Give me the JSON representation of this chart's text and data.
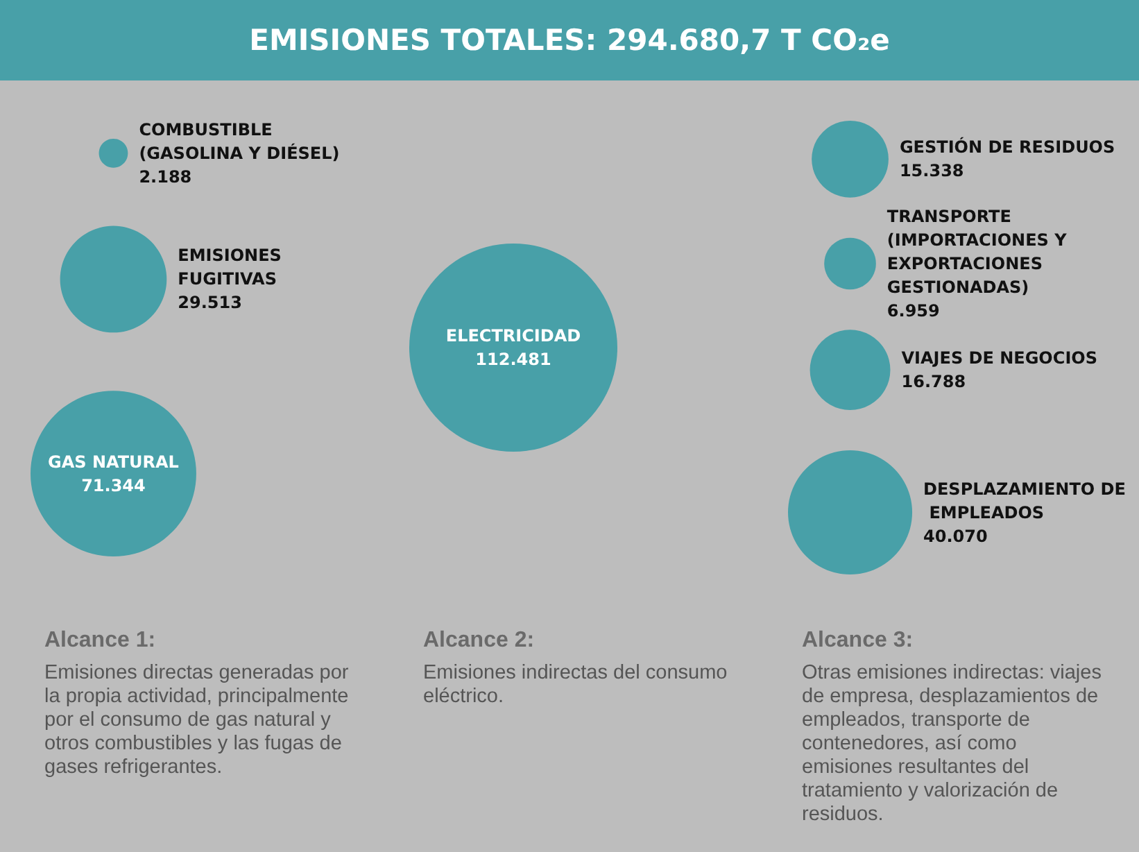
{
  "chart_data": [
    {
      "type": "other",
      "title": "EMISIONES TOTALES: 294.680,7 T CO₂e"
    },
    {
      "type": "other",
      "title": "Alcance 1:",
      "subtitle": "Emisiones directas generadas por la propia actividad, principalmente por el consumo de gas natural y otros combustibles y las fugas de gases refrigerantes.",
      "color": "#48a0a8",
      "categories": [
        "COMBUSTIBLE (GASOLINA Y DIÉSEL)",
        "EMISIONES FUGITIVAS",
        "GAS NATURAL"
      ],
      "values": [
        2188,
        29513,
        71344
      ],
      "value_labels": [
        "2.188",
        "29.513",
        "71.344"
      ]
    },
    {
      "type": "other",
      "title": "Alcance 2:",
      "subtitle": "Emisiones indirectas del consumo eléctrico.",
      "color": "#48a0a8",
      "categories": [
        "ELECTRICIDAD"
      ],
      "values": [
        112481
      ],
      "value_labels": [
        "112.481"
      ]
    },
    {
      "type": "other",
      "title": "Alcance 3:",
      "subtitle": "Otras emisiones indirectas: viajes de empresa, desplazamientos de empleados, transporte de contenedores, así como emisiones resultantes del tratamiento y valorización de residuos.",
      "color": "#48a0a8",
      "categories": [
        "GESTIÓN DE RESIDUOS",
        "TRANSPORTE (IMPORTACIONES Y EXPORTACIONES GESTIONADAS)",
        "VIAJES DE NEGOCIOS",
        "DESPLAZAMIENTO DE EMPLEADOS"
      ],
      "values": [
        15338,
        6959,
        16788,
        40070
      ],
      "value_labels": [
        "15.338",
        "6.959",
        "16.788",
        "40.070"
      ]
    }
  ]
}
